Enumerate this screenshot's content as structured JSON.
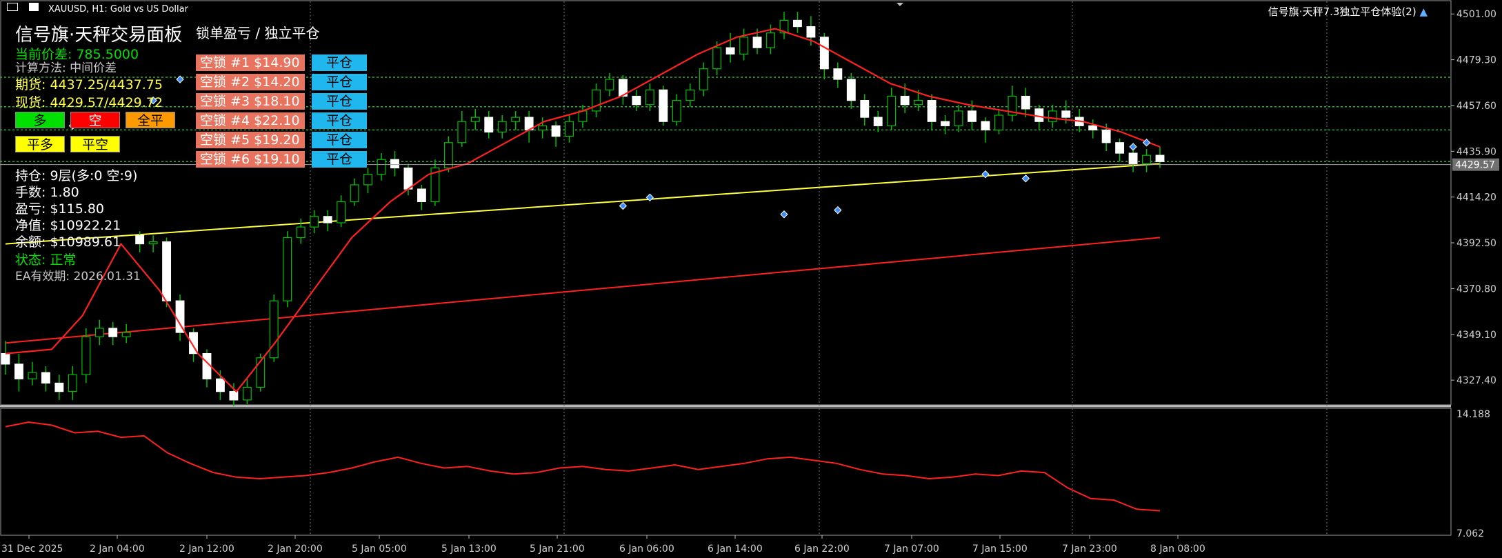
{
  "window": {
    "symbol_title": "XAUUSD, H1:  Gold vs US Dollar",
    "ea_name": "信号旗·天秤7.3独立平仓体验(2)"
  },
  "panel": {
    "title": "信号旗·天秤交易面板",
    "current_spread": "当前价差: 785.5000",
    "calc_method": "计算方法: 中间价差",
    "futures": "期货: 4437.25/4437.75",
    "spot": "现货: 4429.57/4429.72",
    "buttons": {
      "long": "多",
      "short": "空",
      "close_all": "全平",
      "close_long": "平多",
      "close_short": "平空"
    },
    "position": "持仓: 9层(多:0 空:9)",
    "lots": "手数: 1.80",
    "pnl": "盈亏: $115.80",
    "equity": "净值: $10922.21",
    "balance": "余额: $10989.61",
    "status": "状态: 正常",
    "expiry": "EA有效期: 2026.01.31"
  },
  "locks": {
    "header": "锁单盈亏 / 独立平仓",
    "close_label": "平仓",
    "items": [
      {
        "label": "空锁 #1  $14.90"
      },
      {
        "label": "空锁 #2  $14.20"
      },
      {
        "label": "空锁 #3  $18.10"
      },
      {
        "label": "空锁 #4  $22.10"
      },
      {
        "label": "空锁 #5  $19.20"
      },
      {
        "label": "空锁 #6  $19.10"
      }
    ]
  },
  "axis": {
    "price_ticks": [
      "4501.00",
      "4479.30",
      "4457.60",
      "4435.90",
      "4414.20",
      "4392.50",
      "4370.80",
      "4349.10",
      "4327.40"
    ],
    "current_price": "4429.57",
    "indicator_ticks": [
      "14.188",
      "7.062"
    ],
    "time_ticks": [
      "31 Dec 2025",
      "2 Jan 04:00",
      "2 Jan 12:00",
      "2 Jan 20:00",
      "5 Jan 05:00",
      "5 Jan 13:00",
      "5 Jan 21:00",
      "6 Jan 06:00",
      "6 Jan 14:00",
      "6 Jan 22:00",
      "7 Jan 07:00",
      "7 Jan 15:00",
      "7 Jan 23:00",
      "8 Jan 08:00"
    ]
  },
  "colors": {
    "bull": "#ffffff",
    "bear": "#ffffff",
    "wick": "#00c000",
    "ma_fast": "#ff2020",
    "ma_mid": "#ffff40",
    "ma_slow": "#ff2020",
    "grid": "#7a7a7a",
    "hline": "#2fb32f"
  },
  "chart_data": {
    "type": "candlestick",
    "price_range": [
      4316,
      4505
    ],
    "indicator_range": [
      6.5,
      14.8
    ],
    "candles": [
      [
        4340,
        4335,
        4346,
        4330
      ],
      [
        4335,
        4328,
        4340,
        4322
      ],
      [
        4328,
        4331,
        4336,
        4325
      ],
      [
        4331,
        4326,
        4334,
        4322
      ],
      [
        4326,
        4322,
        4330,
        4318
      ],
      [
        4322,
        4330,
        4334,
        4318
      ],
      [
        4330,
        4348,
        4352,
        4326
      ],
      [
        4348,
        4352,
        4356,
        4344
      ],
      [
        4352,
        4348,
        4355,
        4344
      ],
      [
        4348,
        4350,
        4354,
        4345
      ],
      [
        4396,
        4392,
        4398,
        4388
      ],
      [
        4392,
        4393,
        4396,
        4388
      ],
      [
        4393,
        4365,
        4395,
        4362
      ],
      [
        4365,
        4350,
        4368,
        4346
      ],
      [
        4350,
        4340,
        4352,
        4336
      ],
      [
        4340,
        4328,
        4342,
        4324
      ],
      [
        4328,
        4322,
        4332,
        4318
      ],
      [
        4322,
        4318,
        4326,
        4315
      ],
      [
        4318,
        4324,
        4328,
        4316
      ],
      [
        4324,
        4338,
        4340,
        4322
      ],
      [
        4338,
        4365,
        4368,
        4336
      ],
      [
        4365,
        4395,
        4398,
        4362
      ],
      [
        4395,
        4400,
        4404,
        4392
      ],
      [
        4400,
        4405,
        4408,
        4397
      ],
      [
        4405,
        4402,
        4408,
        4398
      ],
      [
        4402,
        4412,
        4415,
        4400
      ],
      [
        4412,
        4420,
        4423,
        4410
      ],
      [
        4420,
        4425,
        4428,
        4416
      ],
      [
        4425,
        4432,
        4435,
        4422
      ],
      [
        4432,
        4428,
        4436,
        4424
      ],
      [
        4428,
        4418,
        4430,
        4415
      ],
      [
        4418,
        4412,
        4420,
        4408
      ],
      [
        4412,
        4428,
        4432,
        4410
      ],
      [
        4428,
        4440,
        4443,
        4426
      ],
      [
        4440,
        4450,
        4455,
        4438
      ],
      [
        4450,
        4452,
        4456,
        4446
      ],
      [
        4452,
        4445,
        4455,
        4442
      ],
      [
        4445,
        4450,
        4453,
        4442
      ],
      [
        4450,
        4452,
        4455,
        4446
      ],
      [
        4452,
        4446,
        4455,
        4440
      ],
      [
        4446,
        4448,
        4452,
        4442
      ],
      [
        4448,
        4443,
        4450,
        4438
      ],
      [
        4443,
        4450,
        4453,
        4440
      ],
      [
        4450,
        4455,
        4458,
        4447
      ],
      [
        4455,
        4465,
        4468,
        4452
      ],
      [
        4465,
        4470,
        4473,
        4462
      ],
      [
        4470,
        4462,
        4472,
        4458
      ],
      [
        4462,
        4458,
        4465,
        4455
      ],
      [
        4458,
        4465,
        4468,
        4455
      ],
      [
        4465,
        4450,
        4467,
        4448
      ],
      [
        4450,
        4460,
        4463,
        4448
      ],
      [
        4460,
        4465,
        4468,
        4457
      ],
      [
        4465,
        4475,
        4478,
        4462
      ],
      [
        4475,
        4485,
        4488,
        4472
      ],
      [
        4485,
        4482,
        4492,
        4478
      ],
      [
        4482,
        4490,
        4494,
        4479
      ],
      [
        4490,
        4485,
        4494,
        4482
      ],
      [
        4485,
        4492,
        4496,
        4482
      ],
      [
        4492,
        4498,
        4502,
        4489
      ],
      [
        4498,
        4495,
        4502,
        4492
      ],
      [
        4495,
        4490,
        4500,
        4486
      ],
      [
        4490,
        4475,
        4492,
        4470
      ],
      [
        4475,
        4470,
        4478,
        4466
      ],
      [
        4470,
        4460,
        4473,
        4456
      ],
      [
        4460,
        4452,
        4463,
        4448
      ],
      [
        4452,
        4448,
        4455,
        4445
      ],
      [
        4448,
        4462,
        4466,
        4446
      ],
      [
        4462,
        4458,
        4468,
        4454
      ],
      [
        4458,
        4460,
        4465,
        4455
      ],
      [
        4460,
        4450,
        4463,
        4446
      ],
      [
        4450,
        4448,
        4453,
        4444
      ],
      [
        4448,
        4455,
        4458,
        4445
      ],
      [
        4455,
        4450,
        4460,
        4446
      ],
      [
        4450,
        4446,
        4452,
        4440
      ],
      [
        4446,
        4453,
        4456,
        4444
      ],
      [
        4453,
        4462,
        4467,
        4450
      ],
      [
        4462,
        4456,
        4466,
        4452
      ],
      [
        4456,
        4450,
        4458,
        4446
      ],
      [
        4450,
        4455,
        4458,
        4447
      ],
      [
        4455,
        4452,
        4460,
        4449
      ],
      [
        4452,
        4448,
        4456,
        4445
      ],
      [
        4448,
        4446,
        4451,
        4442
      ],
      [
        4446,
        4440,
        4449,
        4436
      ],
      [
        4440,
        4435,
        4442,
        4431
      ],
      [
        4435,
        4430,
        4438,
        4426
      ],
      [
        4430,
        4434,
        4437,
        4426
      ],
      [
        4434,
        4431,
        4438,
        4428
      ]
    ],
    "ma_fast": [
      [
        0,
        4340
      ],
      [
        6,
        4342
      ],
      [
        10,
        4358
      ],
      [
        15,
        4392
      ],
      [
        20,
        4370
      ],
      [
        25,
        4340
      ],
      [
        30,
        4322
      ],
      [
        35,
        4345
      ],
      [
        40,
        4370
      ],
      [
        45,
        4395
      ],
      [
        50,
        4412
      ],
      [
        55,
        4425
      ],
      [
        60,
        4430
      ],
      [
        65,
        4440
      ],
      [
        70,
        4450
      ],
      [
        75,
        4455
      ],
      [
        80,
        4462
      ],
      [
        85,
        4472
      ],
      [
        90,
        4482
      ],
      [
        95,
        4490
      ],
      [
        100,
        4494
      ],
      [
        105,
        4488
      ],
      [
        110,
        4478
      ],
      [
        115,
        4468
      ],
      [
        120,
        4462
      ],
      [
        125,
        4458
      ],
      [
        130,
        4455
      ],
      [
        135,
        4452
      ],
      [
        140,
        4450
      ],
      [
        145,
        4445
      ],
      [
        150,
        4438
      ]
    ],
    "ma_mid": [
      [
        0,
        4392
      ],
      [
        150,
        4430
      ]
    ],
    "ma_slow": [
      [
        0,
        4345
      ],
      [
        150,
        4395
      ]
    ],
    "indicator": [
      [
        0,
        13.6
      ],
      [
        3,
        13.9
      ],
      [
        6,
        13.7
      ],
      [
        9,
        13.2
      ],
      [
        12,
        13.3
      ],
      [
        15,
        12.9
      ],
      [
        18,
        13.0
      ],
      [
        21,
        11.9
      ],
      [
        24,
        11.2
      ],
      [
        27,
        10.6
      ],
      [
        30,
        10.3
      ],
      [
        33,
        10.2
      ],
      [
        36,
        10.3
      ],
      [
        39,
        10.4
      ],
      [
        42,
        10.6
      ],
      [
        45,
        10.9
      ],
      [
        48,
        11.3
      ],
      [
        51,
        11.6
      ],
      [
        54,
        11.2
      ],
      [
        57,
        10.9
      ],
      [
        60,
        11.0
      ],
      [
        63,
        10.7
      ],
      [
        66,
        10.5
      ],
      [
        69,
        10.6
      ],
      [
        72,
        10.9
      ],
      [
        75,
        11.0
      ],
      [
        78,
        10.8
      ],
      [
        81,
        10.7
      ],
      [
        84,
        10.9
      ],
      [
        87,
        11.1
      ],
      [
        90,
        10.8
      ],
      [
        93,
        11.0
      ],
      [
        96,
        11.2
      ],
      [
        99,
        11.5
      ],
      [
        102,
        11.6
      ],
      [
        105,
        11.4
      ],
      [
        108,
        11.2
      ],
      [
        111,
        10.8
      ],
      [
        114,
        10.5
      ],
      [
        117,
        10.4
      ],
      [
        120,
        10.2
      ],
      [
        123,
        10.3
      ],
      [
        126,
        10.5
      ],
      [
        129,
        10.4
      ],
      [
        132,
        10.7
      ],
      [
        135,
        10.6
      ],
      [
        138,
        9.6
      ],
      [
        141,
        8.9
      ],
      [
        144,
        8.8
      ],
      [
        147,
        8.2
      ],
      [
        150,
        8.1
      ]
    ],
    "price_lines": [
      4471,
      4457,
      4446,
      4431
    ]
  }
}
